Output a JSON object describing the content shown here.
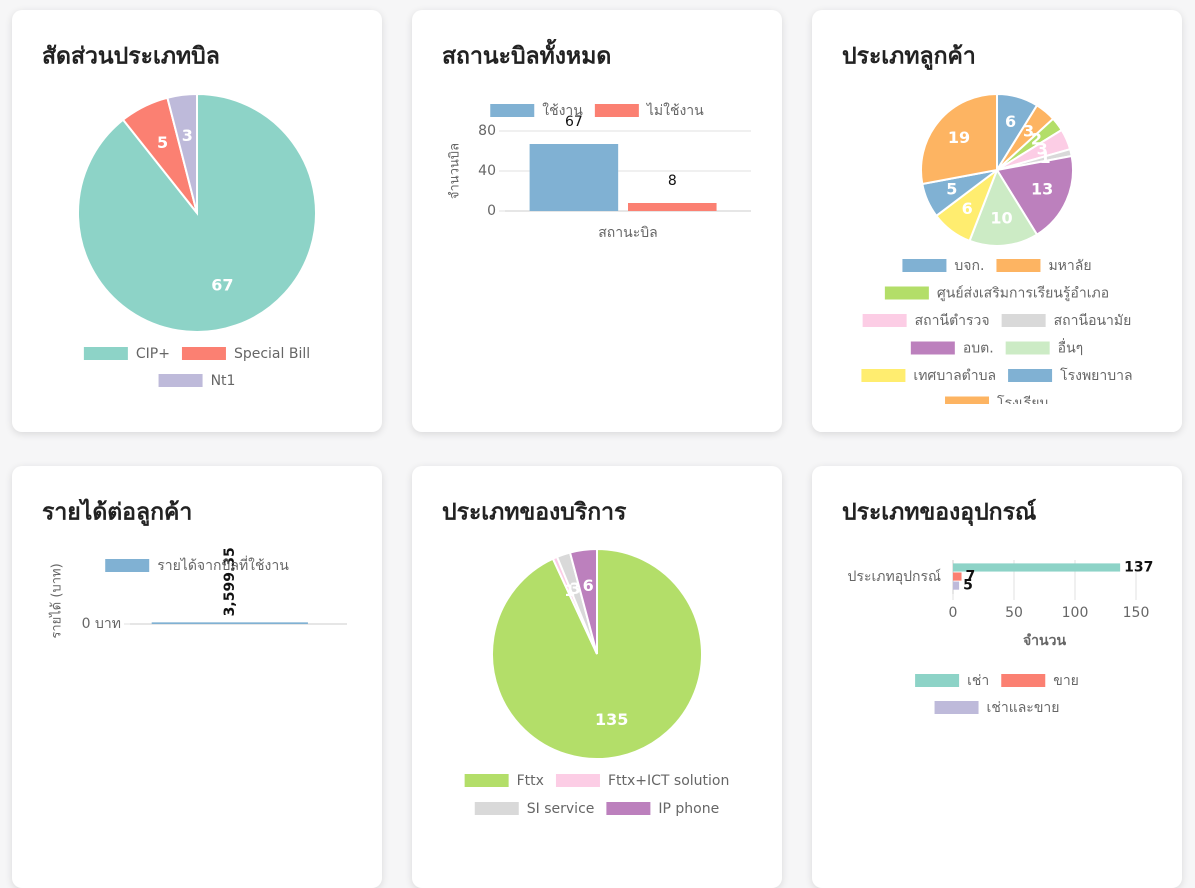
{
  "chart_data": [
    {
      "type": "pie",
      "title": "สัดส่วนประเภทบิล",
      "categories": [
        "CIP+",
        "Special Bill",
        "Nt1"
      ],
      "values": [
        67,
        5,
        3
      ],
      "colors": [
        "#8dd3c7",
        "#fb8072",
        "#bebada"
      ]
    },
    {
      "type": "bar",
      "title": "สถานะบิลทั้งหมด",
      "categories": [
        "สถานะบิล"
      ],
      "ylabel": "จำนวนบิล",
      "series": [
        {
          "name": "ใช้งาน",
          "color": "#80b1d3",
          "values": [
            67
          ]
        },
        {
          "name": "ไม่ใช้งาน",
          "color": "#fb8072",
          "values": [
            8
          ]
        }
      ],
      "ylim": [
        0,
        80
      ],
      "yticks": [
        0,
        40,
        80
      ],
      "grid": true
    },
    {
      "type": "pie",
      "title": "ประเภทลูกค้า",
      "categories": [
        "บจก.",
        "มหาลัย",
        "ศูนย์ส่งเสริมการเรียนรู้อำเภอ",
        "สถานีตำรวจ",
        "สถานีอนามัย",
        "อบต.",
        "อื่นๆ",
        "เทศบาลตำบล",
        "โรงพยาบาล",
        "โรงเรียน"
      ],
      "values": [
        6,
        3,
        2,
        3,
        1,
        13,
        10,
        6,
        5,
        19
      ],
      "colors": [
        "#80b1d3",
        "#fdb462",
        "#b3de69",
        "#fccde5",
        "#d9d9d9",
        "#bc80bd",
        "#ccebc5",
        "#ffed6f",
        "#80b1d3",
        "#fdb462"
      ]
    },
    {
      "type": "bar",
      "title": "รายได้ต่อลูกค้า",
      "ylabel": "รายได้ (บาท)",
      "series": [
        {
          "name": "รายได้จากบิลที่ใช้งาน",
          "color": "#80b1d3",
          "values": [
            3599.35
          ],
          "value_labels": [
            "3,599.35"
          ]
        }
      ],
      "ylim": [
        0,
        100000
      ],
      "yticks": [
        {
          "value": 0,
          "label": "0 บาท"
        }
      ],
      "grid": true
    },
    {
      "type": "pie",
      "title": "ประเภทของบริการ",
      "categories": [
        "Fttx",
        "Fttx+ICT solution",
        "SI service",
        "IP phone"
      ],
      "values": [
        135,
        1,
        3,
        6
      ],
      "colors": [
        "#b3de69",
        "#fccde5",
        "#d9d9d9",
        "#bc80bd"
      ]
    },
    {
      "type": "bar",
      "orientation": "horizontal",
      "title": "ประเภทของอุปกรณ์",
      "categories": [
        "ประเภทอุปกรณ์"
      ],
      "xlabel": "จำนวน",
      "series": [
        {
          "name": "เช่า",
          "color": "#8dd3c7",
          "values": [
            137
          ]
        },
        {
          "name": "ขาย",
          "color": "#fb8072",
          "values": [
            7
          ]
        },
        {
          "name": "เช่าและขาย",
          "color": "#bebada",
          "values": [
            5
          ]
        }
      ],
      "xlim": [
        0,
        150
      ],
      "xticks": [
        0,
        50,
        100,
        150
      ],
      "grid": true
    }
  ]
}
